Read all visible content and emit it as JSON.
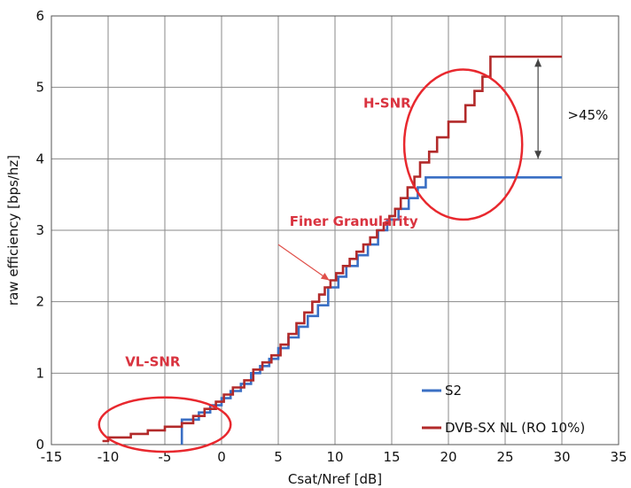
{
  "chart_data": {
    "type": "line",
    "xlabel": "Csat/Nref [dB]",
    "ylabel": "raw efficiency [bps/hz]",
    "xlim": [
      -15,
      35
    ],
    "ylim": [
      0,
      6
    ],
    "xticks": [
      -15,
      -10,
      -5,
      0,
      5,
      10,
      15,
      20,
      25,
      30,
      35
    ],
    "yticks": [
      0,
      1,
      2,
      3,
      4,
      5,
      6
    ],
    "grid": true,
    "legend_position": "bottom-right",
    "series": [
      {
        "name": "S2",
        "color": "#3a6fc4",
        "step": true,
        "points": [
          [
            -3.5,
            0
          ],
          [
            -3.5,
            0.35
          ],
          [
            -2.0,
            0.35
          ],
          [
            -2.0,
            0.45
          ],
          [
            -1.0,
            0.45
          ],
          [
            -1.0,
            0.55
          ],
          [
            0.0,
            0.55
          ],
          [
            0.0,
            0.65
          ],
          [
            0.8,
            0.65
          ],
          [
            0.8,
            0.75
          ],
          [
            1.7,
            0.75
          ],
          [
            1.7,
            0.85
          ],
          [
            2.6,
            0.85
          ],
          [
            2.6,
            1.0
          ],
          [
            3.4,
            1.0
          ],
          [
            3.4,
            1.1
          ],
          [
            4.2,
            1.1
          ],
          [
            4.2,
            1.2
          ],
          [
            5.0,
            1.2
          ],
          [
            5.0,
            1.35
          ],
          [
            5.9,
            1.35
          ],
          [
            5.9,
            1.5
          ],
          [
            6.8,
            1.5
          ],
          [
            6.8,
            1.65
          ],
          [
            7.6,
            1.65
          ],
          [
            7.6,
            1.8
          ],
          [
            8.5,
            1.8
          ],
          [
            8.5,
            1.95
          ],
          [
            9.4,
            1.95
          ],
          [
            9.4,
            2.2
          ],
          [
            10.3,
            2.2
          ],
          [
            10.3,
            2.35
          ],
          [
            11.0,
            2.35
          ],
          [
            11.0,
            2.5
          ],
          [
            12.0,
            2.5
          ],
          [
            12.0,
            2.65
          ],
          [
            12.9,
            2.65
          ],
          [
            12.9,
            2.8
          ],
          [
            13.8,
            2.8
          ],
          [
            13.8,
            3.0
          ],
          [
            14.6,
            3.0
          ],
          [
            14.6,
            3.15
          ],
          [
            15.6,
            3.15
          ],
          [
            15.6,
            3.3
          ],
          [
            16.5,
            3.3
          ],
          [
            16.5,
            3.45
          ],
          [
            17.3,
            3.45
          ],
          [
            17.3,
            3.6
          ],
          [
            18.0,
            3.6
          ],
          [
            18.0,
            3.74
          ],
          [
            30.0,
            3.74
          ]
        ]
      },
      {
        "name": "DVB-SX NL (RO 10%)",
        "color": "#b22a2a",
        "step": true,
        "points": [
          [
            -10.5,
            0.05
          ],
          [
            -10.0,
            0.05
          ],
          [
            -10.0,
            0.1
          ],
          [
            -8.0,
            0.1
          ],
          [
            -8.0,
            0.15
          ],
          [
            -6.5,
            0.15
          ],
          [
            -6.5,
            0.2
          ],
          [
            -5.0,
            0.2
          ],
          [
            -5.0,
            0.25
          ],
          [
            -3.5,
            0.25
          ],
          [
            -3.5,
            0.3
          ],
          [
            -2.5,
            0.3
          ],
          [
            -2.5,
            0.4
          ],
          [
            -1.5,
            0.4
          ],
          [
            -1.5,
            0.5
          ],
          [
            -0.5,
            0.5
          ],
          [
            -0.5,
            0.6
          ],
          [
            0.2,
            0.6
          ],
          [
            0.2,
            0.7
          ],
          [
            1.0,
            0.7
          ],
          [
            1.0,
            0.8
          ],
          [
            2.0,
            0.8
          ],
          [
            2.0,
            0.9
          ],
          [
            2.8,
            0.9
          ],
          [
            2.8,
            1.05
          ],
          [
            3.6,
            1.05
          ],
          [
            3.6,
            1.15
          ],
          [
            4.4,
            1.15
          ],
          [
            4.4,
            1.25
          ],
          [
            5.2,
            1.25
          ],
          [
            5.2,
            1.4
          ],
          [
            5.9,
            1.4
          ],
          [
            5.9,
            1.55
          ],
          [
            6.6,
            1.55
          ],
          [
            6.6,
            1.7
          ],
          [
            7.3,
            1.7
          ],
          [
            7.3,
            1.85
          ],
          [
            8.0,
            1.85
          ],
          [
            8.0,
            2.0
          ],
          [
            8.6,
            2.0
          ],
          [
            8.6,
            2.1
          ],
          [
            9.1,
            2.1
          ],
          [
            9.1,
            2.2
          ],
          [
            9.6,
            2.2
          ],
          [
            9.6,
            2.3
          ],
          [
            10.1,
            2.3
          ],
          [
            10.1,
            2.4
          ],
          [
            10.7,
            2.4
          ],
          [
            10.7,
            2.5
          ],
          [
            11.3,
            2.5
          ],
          [
            11.3,
            2.6
          ],
          [
            11.9,
            2.6
          ],
          [
            11.9,
            2.7
          ],
          [
            12.5,
            2.7
          ],
          [
            12.5,
            2.8
          ],
          [
            13.1,
            2.8
          ],
          [
            13.1,
            2.9
          ],
          [
            13.7,
            2.9
          ],
          [
            13.7,
            3.0
          ],
          [
            14.3,
            3.0
          ],
          [
            14.3,
            3.1
          ],
          [
            14.8,
            3.1
          ],
          [
            14.8,
            3.2
          ],
          [
            15.3,
            3.2
          ],
          [
            15.3,
            3.3
          ],
          [
            15.8,
            3.3
          ],
          [
            15.8,
            3.45
          ],
          [
            16.4,
            3.45
          ],
          [
            16.4,
            3.6
          ],
          [
            17.0,
            3.6
          ],
          [
            17.0,
            3.75
          ],
          [
            17.5,
            3.75
          ],
          [
            17.5,
            3.95
          ],
          [
            18.3,
            3.95
          ],
          [
            18.3,
            4.1
          ],
          [
            19.0,
            4.1
          ],
          [
            19.0,
            4.3
          ],
          [
            20.0,
            4.3
          ],
          [
            20.0,
            4.52
          ],
          [
            21.5,
            4.52
          ],
          [
            21.5,
            4.75
          ],
          [
            22.3,
            4.75
          ],
          [
            22.3,
            4.95
          ],
          [
            23.0,
            4.95
          ],
          [
            23.0,
            5.15
          ],
          [
            23.7,
            5.15
          ],
          [
            23.7,
            5.43
          ],
          [
            30.0,
            5.43
          ]
        ]
      }
    ],
    "annotations": [
      {
        "text": "H-SNR",
        "x": 12.5,
        "y": 4.72,
        "color": "#d9333f"
      },
      {
        "text": "Finer Granularity",
        "x": 6.0,
        "y": 3.06,
        "color": "#d9333f"
      },
      {
        "text": "VL-SNR",
        "x": -8.5,
        "y": 1.1,
        "color": "#d9333f"
      },
      {
        "text": ">45%",
        "x": 30.5,
        "y": 4.55,
        "color": "#111111"
      }
    ],
    "highlight_ellipses": [
      {
        "label": "H-SNR",
        "cx": 21.3,
        "cy": 4.2,
        "rx": 5.2,
        "ry": 1.05,
        "color": "#e8282e"
      },
      {
        "label": "VL-SNR",
        "cx": -5.0,
        "cy": 0.28,
        "rx": 5.8,
        "ry": 0.38,
        "color": "#e8282e"
      }
    ],
    "arrows": [
      {
        "from": [
          5.0,
          2.8
        ],
        "to": [
          9.5,
          2.3
        ],
        "color": "#e0504a"
      },
      {
        "from": [
          27.9,
          4.0
        ],
        "to": [
          27.9,
          5.4
        ],
        "color": "#444444",
        "double": true
      }
    ]
  }
}
